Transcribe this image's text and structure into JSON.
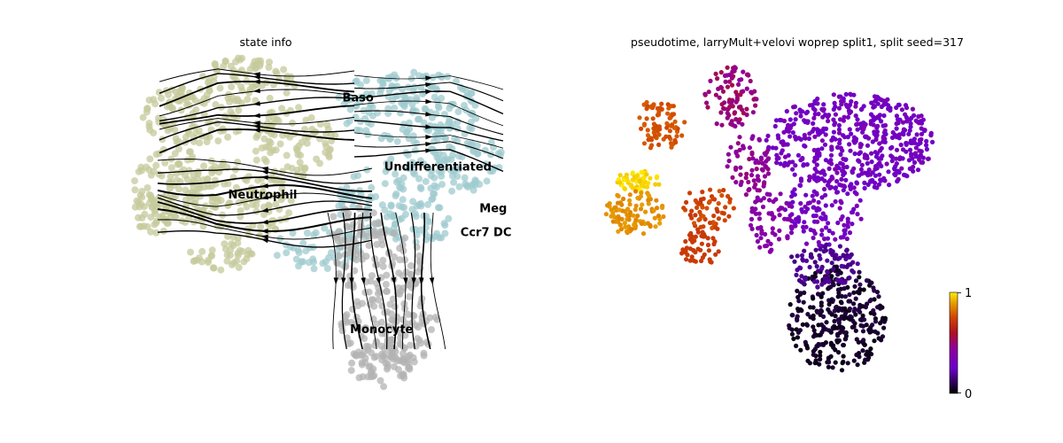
{
  "chart_data": [
    {
      "type": "scatter",
      "title": "state info",
      "variant": "embedding with velocity streamlines",
      "axes": "hidden",
      "grid": false,
      "legend": "on data",
      "point_colors": {
        "Neutrophil": "#c5c99b",
        "Baso": "#9fcbcf",
        "Undifferentiated": "#9fcbcf",
        "Meg": "#9fcbcf",
        "Ccr7 DC": "#9fcbcf",
        "Monocyte": "#b3b3b3"
      },
      "streamline_color": "#000000",
      "cluster_labels": [
        {
          "text": "Baso",
          "x": 0.55,
          "y": 0.86
        },
        {
          "text": "Undifferentiated",
          "x": 0.66,
          "y": 0.66
        },
        {
          "text": "Neutrophil",
          "x": 0.25,
          "y": 0.58
        },
        {
          "text": "Meg",
          "x": 0.91,
          "y": 0.54
        },
        {
          "text": "Ccr7 DC",
          "x": 0.86,
          "y": 0.47
        },
        {
          "text": "Monocyte",
          "x": 0.57,
          "y": 0.19
        }
      ]
    },
    {
      "type": "scatter",
      "title": "pseudotime, larryMult+velovi woprep split1, split seed=317",
      "axes": "hidden",
      "grid": false,
      "colorbar": {
        "min": 0,
        "max": 1,
        "ticks": [
          "1",
          "0"
        ],
        "colormap": "gnuplot",
        "placement": "right"
      },
      "regions": [
        {
          "name": "top-right lobe",
          "value_range": [
            0.25,
            0.35
          ]
        },
        {
          "name": "bottom lobe",
          "value_range": [
            0.0,
            0.1
          ]
        },
        {
          "name": "top-center strand",
          "value_range": [
            0.45,
            0.55
          ]
        },
        {
          "name": "upper-left lobe",
          "value_range": [
            0.75,
            0.8
          ]
        },
        {
          "name": "left lobe",
          "value_range": [
            0.85,
            1.0
          ]
        },
        {
          "name": "center-left lobe",
          "value_range": [
            0.7,
            0.78
          ]
        }
      ]
    }
  ]
}
